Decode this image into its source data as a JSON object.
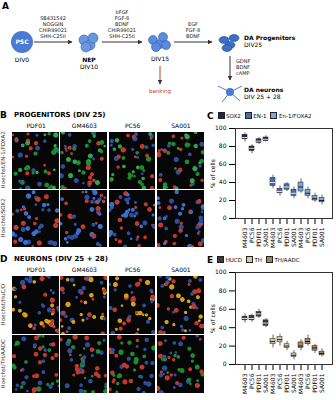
{
  "figure": {
    "A": {
      "letter": "A",
      "stages": [
        {
          "label": "PSC",
          "div": "DIV0"
        },
        {
          "label": "NEP",
          "div": "DIV10"
        },
        {
          "div": "DIV15"
        },
        {
          "label": "DA Progenitors",
          "div": "DIV25"
        },
        {
          "label": "DA neurons",
          "div": "DIV 25 + 28"
        }
      ],
      "factors": [
        [
          "SB431542",
          "NOGGIN",
          "CHIR99021",
          "SHH-C25II"
        ],
        [
          "bFGF",
          "FGF-8",
          "BDNF",
          "CHIR99021",
          "SHH-C25II"
        ],
        [
          "EGF",
          "FGF-8",
          "BDNF"
        ],
        [
          "GDNF",
          "BDNF",
          "cAMP"
        ]
      ],
      "banking": "banking"
    },
    "B": {
      "letter": "B",
      "title": "PROGENITORS (DIV 25)",
      "columns": [
        "PDF01",
        "GM4603",
        "PC56",
        "SA001"
      ],
      "rows": [
        "Hoechst/EN-1/FOXA2",
        "Hoechst/SOX2"
      ]
    },
    "D": {
      "letter": "D",
      "title": "NEURONS (DIV 25 + 28)",
      "columns": [
        "PDF01",
        "GM4603",
        "PC56",
        "SA001"
      ],
      "rows": [
        "Hoechst/HuC/D",
        "Hoechst/TH/AADC"
      ]
    }
  },
  "chart_data": [
    {
      "letter": "C",
      "type": "box",
      "y_label": "% of cells",
      "categories": [
        "GM4603",
        "PC56",
        "PDF01",
        "SA001"
      ],
      "ylim": [
        0,
        100
      ],
      "yticks": [
        0,
        20,
        40,
        60,
        80,
        100
      ],
      "legend": "top",
      "series": [
        {
          "name": "SOX2",
          "color": "#1b2a4a",
          "min": [
            85,
            72,
            82,
            85
          ],
          "q1": [
            88,
            75,
            84,
            86
          ],
          "median": [
            90,
            78,
            86,
            88
          ],
          "q3": [
            93,
            80,
            88,
            90
          ],
          "max": [
            95,
            82,
            90,
            92
          ]
        },
        {
          "name": "EN-1",
          "color": "#4a6fa5",
          "min": [
            33,
            25,
            30,
            22
          ],
          "q1": [
            36,
            28,
            32,
            25
          ],
          "median": [
            40,
            30,
            35,
            28
          ],
          "q3": [
            45,
            33,
            38,
            32
          ],
          "max": [
            48,
            36,
            40,
            35
          ]
        },
        {
          "name": "En-1/FOXA2",
          "color": "#7ea6d8",
          "min": [
            28,
            22,
            18,
            15
          ],
          "q1": [
            30,
            25,
            20,
            18
          ],
          "median": [
            35,
            28,
            22,
            20
          ],
          "q3": [
            40,
            32,
            25,
            23
          ],
          "max": [
            44,
            35,
            28,
            26
          ]
        }
      ]
    },
    {
      "letter": "E",
      "type": "box",
      "y_label": "% of cells",
      "categories": [
        "GM4603",
        "PC56",
        "PDF01",
        "SA001"
      ],
      "ylim": [
        0,
        100
      ],
      "yticks": [
        0,
        20,
        40,
        60,
        80,
        100
      ],
      "legend": "top",
      "series": [
        {
          "name": "HUCD",
          "color": "#3a3a3a",
          "min": [
            45,
            46,
            50,
            40
          ],
          "q1": [
            48,
            48,
            52,
            42
          ],
          "median": [
            50,
            50,
            55,
            45
          ],
          "q3": [
            52,
            53,
            57,
            48
          ],
          "max": [
            55,
            55,
            60,
            50
          ]
        },
        {
          "name": "TH",
          "color": "#d8c7a1",
          "min": [
            18,
            20,
            15,
            5
          ],
          "q1": [
            22,
            24,
            18,
            8
          ],
          "median": [
            25,
            27,
            20,
            10
          ],
          "q3": [
            28,
            30,
            22,
            12
          ],
          "max": [
            32,
            33,
            25,
            15
          ]
        },
        {
          "name": "TH/AADC",
          "color": "#a3865f",
          "min": [
            15,
            20,
            12,
            8
          ],
          "q1": [
            18,
            22,
            15,
            10
          ],
          "median": [
            20,
            25,
            18,
            12
          ],
          "q3": [
            24,
            28,
            20,
            14
          ],
          "max": [
            27,
            32,
            22,
            17
          ]
        }
      ]
    }
  ]
}
